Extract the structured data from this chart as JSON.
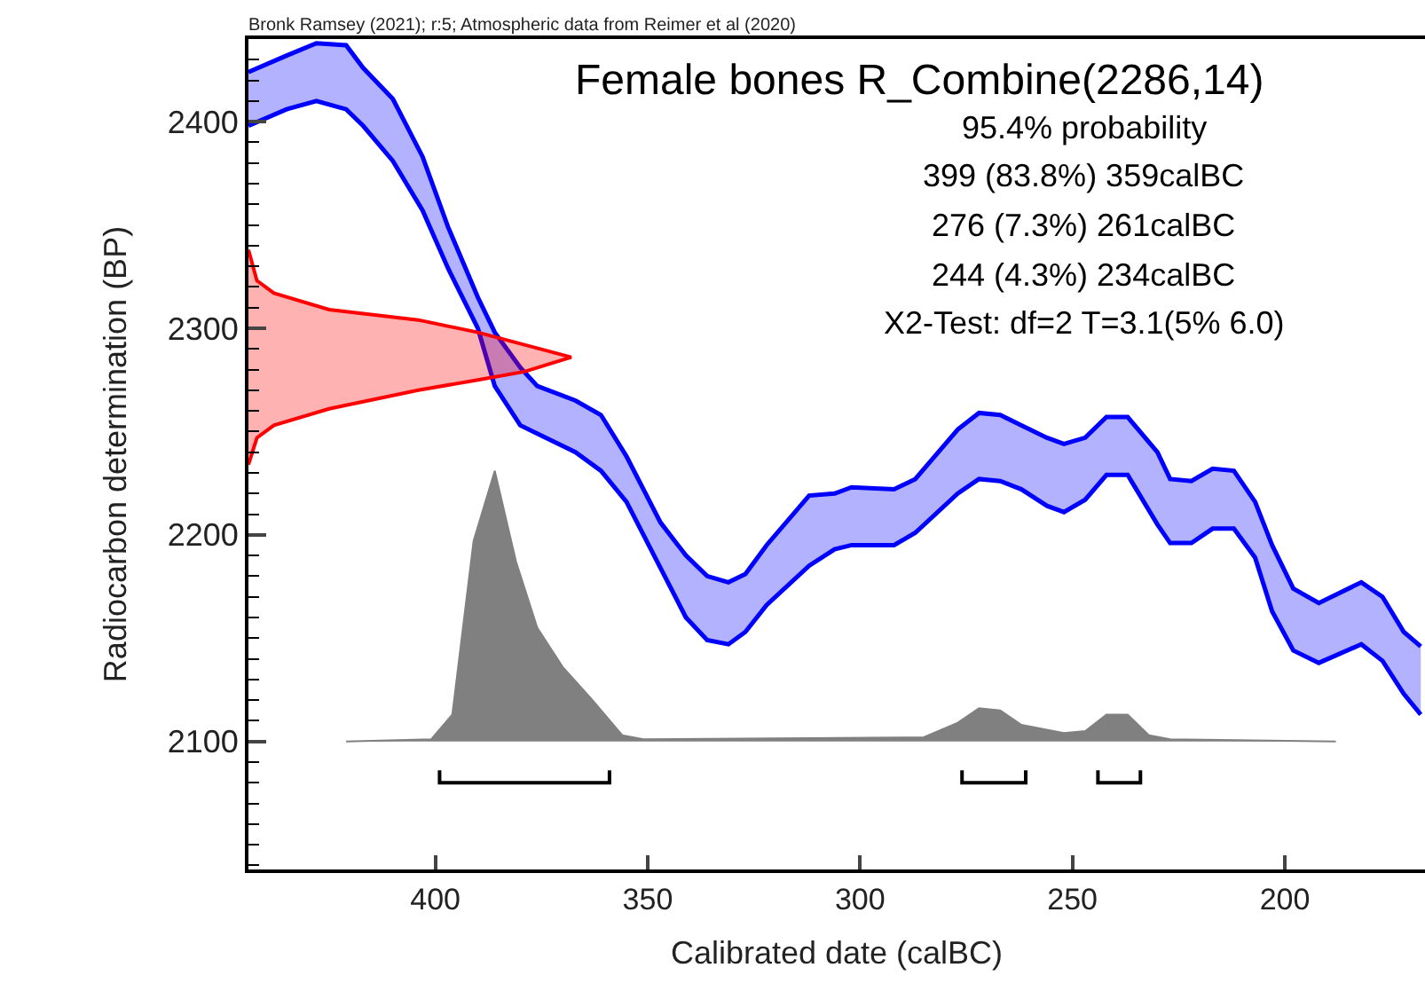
{
  "chart_data": {
    "type": "line",
    "title": "Female bones R_Combine(2286,14)",
    "xlabel": "Calibrated date (calBC)",
    "ylabel": "Radiocarbon determination (BP)",
    "annotations": [
      "Bronk Ramsey (2021); r:5; Atmospheric data from Reimer et al (2020)",
      "95.4% probability",
      "399 (83.8%) 359calBC",
      "276 (7.3%) 261calBC",
      "244 (4.3%) 234calBC",
      "X2-Test: df=2 T=3.1(5% 6.0)"
    ],
    "xlim": [
      444,
      167
    ],
    "ylim": [
      2038,
      2440
    ],
    "xticks": [
      400,
      350,
      300,
      250,
      200
    ],
    "yticks": [
      {
        "value": 2040,
        "label": null
      },
      {
        "value": 2050,
        "label": null
      },
      {
        "value": 2060,
        "label": null
      },
      {
        "value": 2070,
        "label": null
      },
      {
        "value": 2080,
        "label": null
      },
      {
        "value": 2090,
        "label": null
      },
      2100,
      {
        "value": 2110,
        "label": null
      },
      {
        "value": 2120,
        "label": null
      },
      {
        "value": 2130,
        "label": null
      },
      {
        "value": 2140,
        "label": null
      },
      {
        "value": 2150,
        "label": null
      },
      {
        "value": 2160,
        "label": null
      },
      {
        "value": 2170,
        "label": null
      },
      {
        "value": 2180,
        "label": null
      },
      {
        "value": 2190,
        "label": null
      },
      2200,
      {
        "value": 2210,
        "label": null
      },
      {
        "value": 2220,
        "label": null
      },
      {
        "value": 2230,
        "label": null
      },
      {
        "value": 2240,
        "label": null
      },
      {
        "value": 2250,
        "label": null
      },
      {
        "value": 2260,
        "label": null
      },
      {
        "value": 2270,
        "label": null
      },
      {
        "value": 2280,
        "label": null
      },
      {
        "value": 2290,
        "label": null
      },
      2300,
      {
        "value": 2310,
        "label": null
      },
      {
        "value": 2320,
        "label": null
      },
      {
        "value": 2330,
        "label": null
      },
      {
        "value": 2340,
        "label": null
      },
      {
        "value": 2350,
        "label": null
      },
      {
        "value": 2360,
        "label": null
      },
      {
        "value": 2370,
        "label": null
      },
      {
        "value": 2380,
        "label": null
      },
      {
        "value": 2390,
        "label": null
      },
      2400,
      {
        "value": 2410,
        "label": null
      },
      {
        "value": 2420,
        "label": null
      },
      {
        "value": 2430,
        "label": null
      }
    ],
    "series": [
      {
        "color": "#0000ff",
        "x": [
          444,
          435,
          428,
          421,
          417,
          410,
          403,
          397,
          390,
          386,
          380,
          376,
          367,
          361,
          355,
          347,
          341,
          336,
          331,
          327,
          322,
          312,
          306,
          302,
          292,
          287,
          277,
          272,
          267,
          262,
          256,
          252,
          247,
          242,
          237,
          230,
          227,
          222,
          217,
          212,
          207,
          203,
          198,
          192,
          182,
          177,
          172,
          168
        ],
        "values": [
          2424,
          2432,
          2438,
          2437,
          2426,
          2411,
          2383,
          2349,
          2315,
          2298,
          2281,
          2272,
          2265,
          2258,
          2238,
          2206,
          2190,
          2180,
          2177,
          2181,
          2195,
          2219,
          2220,
          2223,
          2222,
          2227,
          2251,
          2259,
          2258,
          2253,
          2247,
          2244,
          2247,
          2257,
          2257,
          2240,
          2227,
          2226,
          2232,
          2231,
          2216,
          2195,
          2174,
          2167,
          2177,
          2170,
          2153,
          2146
        ]
      },
      {
        "color": "#0000ff",
        "x": [
          444,
          435,
          428,
          421,
          417,
          410,
          403,
          397,
          390,
          386,
          380,
          376,
          367,
          361,
          355,
          347,
          341,
          336,
          331,
          327,
          322,
          312,
          306,
          302,
          292,
          287,
          277,
          272,
          267,
          262,
          256,
          252,
          247,
          242,
          237,
          230,
          227,
          222,
          217,
          212,
          207,
          203,
          198,
          192,
          182,
          177,
          172,
          168
        ],
        "values": [
          2398,
          2406,
          2410,
          2406,
          2398,
          2381,
          2357,
          2329,
          2300,
          2272,
          2253,
          2249,
          2240,
          2231,
          2216,
          2184,
          2160,
          2149,
          2147,
          2153,
          2166,
          2185,
          2193,
          2195,
          2195,
          2201,
          2220,
          2227,
          2226,
          2222,
          2214,
          2211,
          2217,
          2229,
          2229,
          2205,
          2196,
          2196,
          2203,
          2203,
          2189,
          2163,
          2144,
          2138,
          2147,
          2139,
          2123,
          2113
        ],
        "upper": [
          2424,
          2432,
          2438,
          2437,
          2426,
          2411,
          2383,
          2349,
          2315,
          2298,
          2281,
          2272,
          2265,
          2258,
          2238,
          2206,
          2190,
          2180,
          2177,
          2181,
          2195,
          2219,
          2220,
          2223,
          2222,
          2227,
          2251,
          2259,
          2258,
          2253,
          2247,
          2244,
          2247,
          2257,
          2257,
          2240,
          2227,
          2226,
          2232,
          2231,
          2216,
          2195,
          2174,
          2167,
          2177,
          2170,
          2153,
          2146
        ],
        "lower": [
          2398,
          2406,
          2410,
          2406,
          2398,
          2381,
          2357,
          2329,
          2300,
          2272,
          2253,
          2249,
          2240,
          2231,
          2216,
          2184,
          2160,
          2149,
          2147,
          2153,
          2166,
          2185,
          2193,
          2195,
          2195,
          2201,
          2220,
          2227,
          2226,
          2222,
          2214,
          2211,
          2217,
          2229,
          2229,
          2205,
          2196,
          2196,
          2203,
          2203,
          2189,
          2163,
          2144,
          2138,
          2147,
          2139,
          2123,
          2113
        ]
      },
      {
        "type": "area",
        "color": "#ff0000",
        "x": [
          444,
          442,
          438,
          425,
          404,
          390,
          379,
          368,
          379,
          390,
          404,
          425,
          438,
          442,
          444
        ],
        "values": [
          2338,
          2323,
          2317,
          2309,
          2304,
          2298,
          2292,
          2286,
          2279,
          2275,
          2270,
          2261,
          2253,
          2247,
          2234
        ]
      },
      {
        "type": "area",
        "color": "#808080",
        "x": [
          421,
          401,
          396,
          391,
          386,
          381,
          376,
          370,
          363,
          356,
          351,
          285,
          277,
          272,
          267,
          262,
          252,
          247,
          242,
          237,
          232,
          227,
          188
        ],
        "values": [
          2100,
          2101,
          2113,
          2197,
          2231,
          2187,
          2155,
          2136,
          2120,
          2103,
          2101,
          2102,
          2109,
          2116,
          2115,
          2108,
          2104,
          2105,
          2113,
          2113,
          2103,
          2101,
          2100
        ]
      },
      {
        "color": "#000000",
        "x": [
          399,
          399,
          359,
          359,
          null,
          276,
          276,
          261,
          261,
          null,
          244,
          244,
          234,
          234
        ],
        "values": [
          2086,
          2080,
          2080,
          2086,
          null,
          2086,
          2080,
          2080,
          2086,
          null,
          2086,
          2080,
          2080,
          2086
        ]
      }
    ]
  }
}
